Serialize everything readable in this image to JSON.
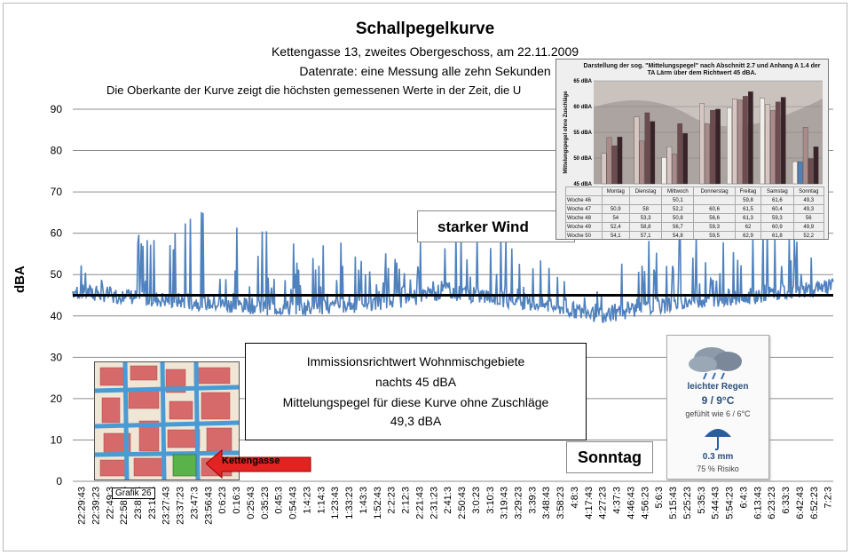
{
  "header": {
    "title": "Schallpegelkurve",
    "subtitle1": "Kettengasse 13, zweites Obergeschoss, am 22.11.2009",
    "subtitle2": "Datenrate: eine Messung alle zehn Sekunden",
    "subtitle3": "Die Oberkante der Kurve zeigt die höchsten gemessenen Werte  in der Zeit, die U"
  },
  "chart_data": {
    "type": "line",
    "ylabel": "dBA",
    "ylim": [
      0,
      90
    ],
    "yticks": [
      0,
      10,
      20,
      30,
      40,
      50,
      60,
      70,
      80,
      90
    ],
    "xticks": [
      "22:29:43",
      "22:39:23",
      "22:49:3",
      "22:58:43",
      "23:8:23",
      "23:18:3",
      "23:27:43",
      "23:37:23",
      "23:47:3",
      "23:56:43",
      "0:6:23",
      "0:16:3",
      "0:25:43",
      "0:35:23",
      "0:45:3",
      "0:54:43",
      "1:4:23",
      "1:14:3",
      "1:23:43",
      "1:33:23",
      "1:43:3",
      "1:52:43",
      "2:2:23",
      "2:12:3",
      "2:21:43",
      "2:31:23",
      "2:41:3",
      "2:50:43",
      "3:0:23",
      "3:10:3",
      "3:19:43",
      "3:29:23",
      "3:39:3",
      "3:48:43",
      "3:58:23",
      "4:8:3",
      "4:17:43",
      "4:27:23",
      "4:37:3",
      "4:46:43",
      "4:56:23",
      "5:6:3",
      "5:15:43",
      "5:25:23",
      "5:35:3",
      "5:44:43",
      "5:54:23",
      "6:4:3",
      "6:13:43",
      "6:23:23",
      "6:33:3",
      "6:42:43",
      "6:52:23",
      "7:2:3"
    ],
    "grid": true,
    "series": [
      {
        "color": "#4f81bd",
        "profile": [
          {
            "t": "22:29:43",
            "base": 44,
            "peak": 51
          },
          {
            "t": "22:58:43",
            "base": 43,
            "peak": 58
          },
          {
            "t": "23:27:43",
            "base": 42,
            "peak": 63
          },
          {
            "t": "0:6:23",
            "base": 41,
            "peak": 68
          },
          {
            "t": "0:45:3",
            "base": 40,
            "peak": 60
          },
          {
            "t": "1:23:43",
            "base": 40,
            "peak": 61
          },
          {
            "t": "2:12:3",
            "base": 42,
            "peak": 57
          },
          {
            "t": "2:41:3",
            "base": 44,
            "peak": 64
          },
          {
            "t": "3:19:43",
            "base": 42,
            "peak": 60
          },
          {
            "t": "3:58:23",
            "base": 40,
            "peak": 52
          },
          {
            "t": "4:27:23",
            "base": 38,
            "peak": 48
          },
          {
            "t": "4:56:23",
            "base": 40,
            "peak": 60
          },
          {
            "t": "5:35:3",
            "base": 42,
            "peak": 61
          },
          {
            "t": "6:13:43",
            "base": 43,
            "peak": 62
          },
          {
            "t": "7:2:3",
            "base": 45,
            "peak": 55
          }
        ]
      },
      {
        "color": "#000000",
        "values": [
          45,
          45
        ]
      }
    ],
    "annotations": {
      "wind": "starker Wind",
      "sunday": "Sonntag"
    }
  },
  "note": {
    "line1": "Immissionsrichtwert Wohnmischgebiete",
    "line2": "nachts 45 dBA",
    "line3": "Mittelungspegel für diese Kurve ohne Zuschläge",
    "line4": "49,3 dBA"
  },
  "map": {
    "caption": "Grafik 26",
    "arrow_label": "Kettengasse"
  },
  "inset": {
    "title": "Darstellung der sog. \"Mittelungspegel\" nach Abschnitt 2.7 und Anhang A 1.4 der TA Lärm über dem Richtwert 45 dBA.",
    "ylabel": "Mittelungspegel ohne Zuschläge",
    "yticks": [
      "65 dBA",
      "60 dBA",
      "55 dBA",
      "50 dBA",
      "45 dBA"
    ],
    "days": [
      "Montag",
      "Dienstag",
      "Mittwoch",
      "Donnerstag",
      "Freitag",
      "Samstag",
      "Sonntag"
    ],
    "rows": [
      {
        "label": "Woche 46",
        "values": [
          "",
          "",
          "50,1",
          "",
          "59,8",
          "61,6",
          "49,3"
        ]
      },
      {
        "label": "Woche 47",
        "values": [
          "50,9",
          "58",
          "52,2",
          "60,6",
          "61,5",
          "60,4",
          "49,3"
        ]
      },
      {
        "label": "Woche 48",
        "values": [
          "54",
          "53,3",
          "50,8",
          "56,6",
          "61,3",
          "59,3",
          "56"
        ]
      },
      {
        "label": "Woche 49",
        "values": [
          "52,4",
          "58,8",
          "56,7",
          "59,3",
          "62",
          "60,9",
          "49,9"
        ]
      },
      {
        "label": "Woche 50",
        "values": [
          "54,1",
          "57,1",
          "54,8",
          "59,5",
          "62,9",
          "61,8",
          "52,2"
        ]
      }
    ],
    "ymin": 45,
    "ymax": 65,
    "colors": [
      "#f2eee9",
      "#d7c6c2",
      "#a98b8a",
      "#6e4b4f",
      "#3a2328"
    ],
    "highlight_color": "#4f81bd"
  },
  "weather": {
    "condition": "leichter Regen",
    "temp": "9 / 9°C",
    "feels": "gefühlt wie 6 / 6°C",
    "rain": "0.3 mm",
    "risk": "75 % Risiko",
    "icon": "rain-cloud-icon",
    "icon2": "umbrella-icon"
  }
}
